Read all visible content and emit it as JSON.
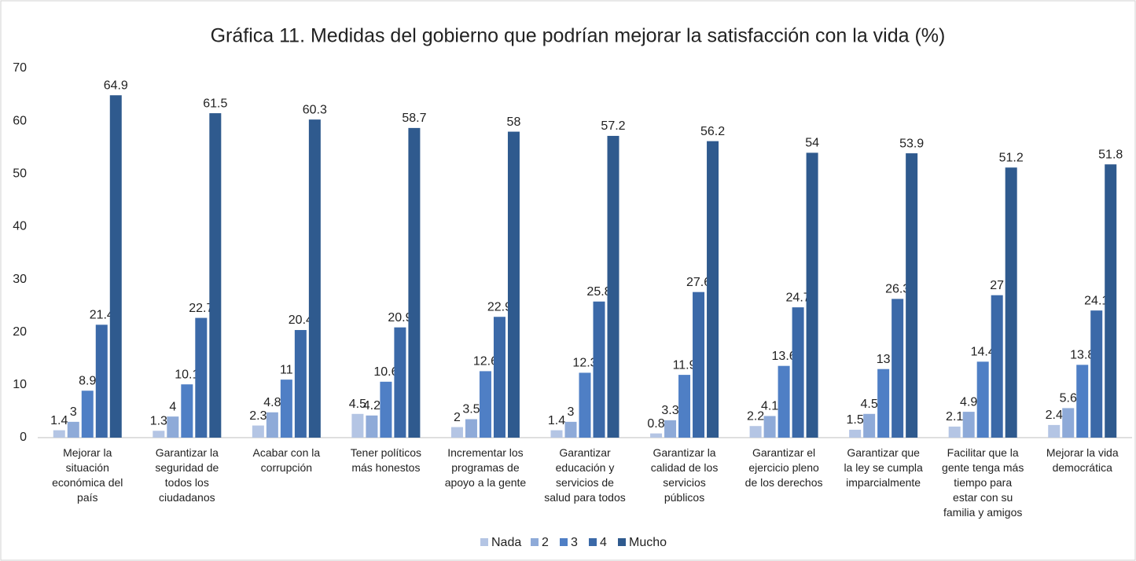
{
  "chart_data": {
    "type": "bar",
    "title": "Gráfica 11. Medidas del gobierno que podrían mejorar la satisfacción con la vida (%)",
    "categories": [
      "Mejorar la\nsituación\neconómica del\npaís",
      "Garantizar la\nseguridad de\ntodos los\nciudadanos",
      "Acabar con la\ncorrupción",
      "Tener políticos\nmás honestos",
      "Incrementar los\nprogramas de\napoyo a la gente",
      "Garantizar\neducación y\nservicios de\nsalud para todos",
      "Garantizar la\ncalidad de los\nservicios\npúblicos",
      "Garantizar el\nejercicio pleno\nde los derechos",
      "Garantizar que\nla ley se cumpla\nimparcialmente",
      "Facilitar que la\ngente tenga más\ntiempo para\nestar con su\nfamilia y amigos",
      "Mejorar la vida\ndemocrática"
    ],
    "series": [
      {
        "name": "Nada",
        "color": "#b4c5e4",
        "values": [
          1.4,
          1.3,
          2.3,
          4.5,
          2,
          1.4,
          0.8,
          2.2,
          1.5,
          2.1,
          2.4
        ]
      },
      {
        "name": "2",
        "color": "#8eaad8",
        "values": [
          3,
          4,
          4.8,
          4.2,
          3.5,
          3,
          3.3,
          4.1,
          4.5,
          4.9,
          5.6
        ]
      },
      {
        "name": "3",
        "color": "#4f7fc5",
        "values": [
          8.9,
          10.1,
          11,
          10.6,
          12.6,
          12.3,
          11.9,
          13.6,
          13,
          14.4,
          13.8
        ]
      },
      {
        "name": "4",
        "color": "#3b69a8",
        "values": [
          21.4,
          22.7,
          20.4,
          20.9,
          22.9,
          25.8,
          27.6,
          24.7,
          26.3,
          27,
          24.1
        ]
      },
      {
        "name": "Mucho",
        "color": "#2f5a8e",
        "values": [
          64.9,
          61.5,
          60.3,
          58.7,
          58,
          57.2,
          56.2,
          54,
          53.9,
          51.2,
          51.8
        ]
      }
    ],
    "ylim": [
      0,
      70
    ],
    "yticks": [
      0,
      10,
      20,
      30,
      40,
      50,
      60,
      70
    ],
    "grid": false,
    "legend": "bottom"
  }
}
